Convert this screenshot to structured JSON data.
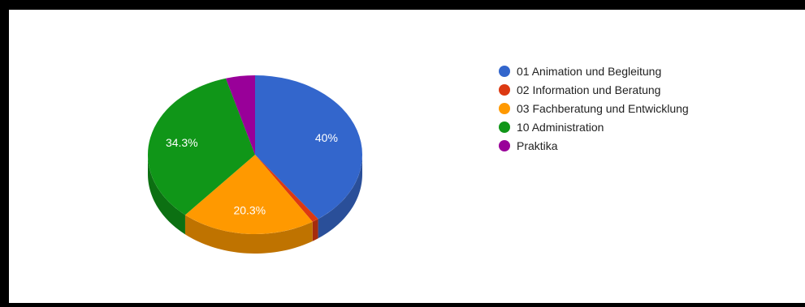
{
  "chart_data": {
    "type": "pie",
    "title": "",
    "three_d": true,
    "legend_position": "right",
    "slices": [
      {
        "label": "01 Animation und Begleitung",
        "value": 40.0,
        "color": "#3366cc",
        "side_color": "#2a4f99",
        "data_label": "40%"
      },
      {
        "label": "02 Information und Beratung",
        "value": 1.0,
        "color": "#dc3912",
        "side_color": "#a52b0d",
        "data_label": ""
      },
      {
        "label": "03 Fachberatung und Entwicklung",
        "value": 20.3,
        "color": "#ff9900",
        "side_color": "#bf7300",
        "data_label": "20.3%"
      },
      {
        "label": "10 Administration",
        "value": 34.3,
        "color": "#109618",
        "side_color": "#0c7012",
        "data_label": "34.3%"
      },
      {
        "label": "Praktika",
        "value": 4.4,
        "color": "#990099",
        "side_color": "#730073",
        "data_label": ""
      }
    ]
  }
}
